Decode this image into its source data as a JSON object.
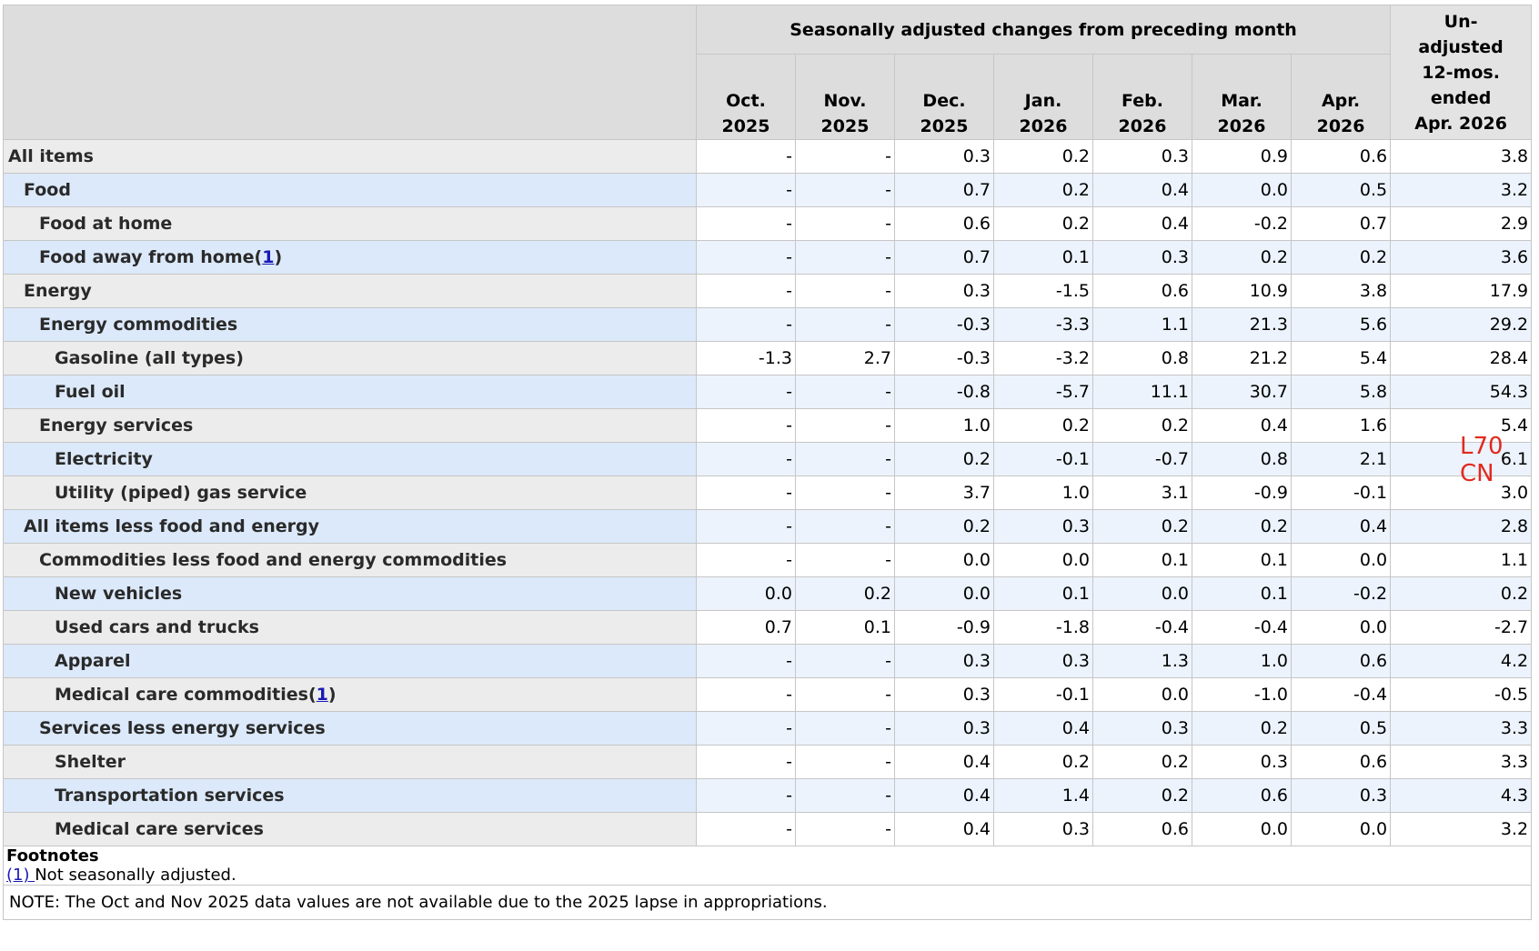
{
  "header": {
    "group_label": "Seasonally adjusted changes from preceding month",
    "periods": [
      {
        "month": "Oct.",
        "year": "2025"
      },
      {
        "month": "Nov.",
        "year": "2025"
      },
      {
        "month": "Dec.",
        "year": "2025"
      },
      {
        "month": "Jan.",
        "year": "2026"
      },
      {
        "month": "Feb.",
        "year": "2026"
      },
      {
        "month": "Mar.",
        "year": "2026"
      },
      {
        "month": "Apr.",
        "year": "2026"
      }
    ],
    "unadjusted": [
      "Un-",
      "adjusted",
      "12-mos.",
      "ended",
      "Apr. 2026"
    ]
  },
  "rows": [
    {
      "label": "All items",
      "indent": 0,
      "values": [
        "-",
        "-",
        "0.3",
        "0.2",
        "0.3",
        "0.9",
        "0.6",
        "3.8"
      ]
    },
    {
      "label": "Food",
      "indent": 1,
      "values": [
        "-",
        "-",
        "0.7",
        "0.2",
        "0.4",
        "0.0",
        "0.5",
        "3.2"
      ]
    },
    {
      "label": "Food at home",
      "indent": 2,
      "values": [
        "-",
        "-",
        "0.6",
        "0.2",
        "0.4",
        "-0.2",
        "0.7",
        "2.9"
      ]
    },
    {
      "label": "Food away from home",
      "footnote": "1",
      "indent": 2,
      "values": [
        "-",
        "-",
        "0.7",
        "0.1",
        "0.3",
        "0.2",
        "0.2",
        "3.6"
      ]
    },
    {
      "label": "Energy",
      "indent": 1,
      "values": [
        "-",
        "-",
        "0.3",
        "-1.5",
        "0.6",
        "10.9",
        "3.8",
        "17.9"
      ]
    },
    {
      "label": "Energy commodities",
      "indent": 2,
      "values": [
        "-",
        "-",
        "-0.3",
        "-3.3",
        "1.1",
        "21.3",
        "5.6",
        "29.2"
      ]
    },
    {
      "label": "Gasoline (all types)",
      "indent": 3,
      "values": [
        "-1.3",
        "2.7",
        "-0.3",
        "-3.2",
        "0.8",
        "21.2",
        "5.4",
        "28.4"
      ]
    },
    {
      "label": "Fuel oil",
      "indent": 3,
      "values": [
        "-",
        "-",
        "-0.8",
        "-5.7",
        "11.1",
        "30.7",
        "5.8",
        "54.3"
      ]
    },
    {
      "label": "Energy services",
      "indent": 2,
      "values": [
        "-",
        "-",
        "1.0",
        "0.2",
        "0.2",
        "0.4",
        "1.6",
        "5.4"
      ]
    },
    {
      "label": "Electricity",
      "indent": 3,
      "values": [
        "-",
        "-",
        "0.2",
        "-0.1",
        "-0.7",
        "0.8",
        "2.1",
        "6.1"
      ]
    },
    {
      "label": "Utility (piped) gas service",
      "indent": 3,
      "values": [
        "-",
        "-",
        "3.7",
        "1.0",
        "3.1",
        "-0.9",
        "-0.1",
        "3.0"
      ]
    },
    {
      "label": "All items less food and energy",
      "indent": 1,
      "values": [
        "-",
        "-",
        "0.2",
        "0.3",
        "0.2",
        "0.2",
        "0.4",
        "2.8"
      ]
    },
    {
      "label": "Commodities less food and energy commodities",
      "indent": 2,
      "values": [
        "-",
        "-",
        "0.0",
        "0.0",
        "0.1",
        "0.1",
        "0.0",
        "1.1"
      ]
    },
    {
      "label": "New vehicles",
      "indent": 3,
      "values": [
        "0.0",
        "0.2",
        "0.0",
        "0.1",
        "0.0",
        "0.1",
        "-0.2",
        "0.2"
      ]
    },
    {
      "label": "Used cars and trucks",
      "indent": 3,
      "values": [
        "0.7",
        "0.1",
        "-0.9",
        "-1.8",
        "-0.4",
        "-0.4",
        "0.0",
        "-2.7"
      ]
    },
    {
      "label": "Apparel",
      "indent": 3,
      "values": [
        "-",
        "-",
        "0.3",
        "0.3",
        "1.3",
        "1.0",
        "0.6",
        "4.2"
      ]
    },
    {
      "label": "Medical care commodities",
      "footnote": "1",
      "indent": 3,
      "values": [
        "-",
        "-",
        "0.3",
        "-0.1",
        "0.0",
        "-1.0",
        "-0.4",
        "-0.5"
      ]
    },
    {
      "label": "Services less energy services",
      "indent": 2,
      "values": [
        "-",
        "-",
        "0.3",
        "0.4",
        "0.3",
        "0.2",
        "0.5",
        "3.3"
      ]
    },
    {
      "label": "Shelter",
      "indent": 3,
      "values": [
        "-",
        "-",
        "0.4",
        "0.2",
        "0.2",
        "0.3",
        "0.6",
        "3.3"
      ]
    },
    {
      "label": "Transportation services",
      "indent": 3,
      "values": [
        "-",
        "-",
        "0.4",
        "1.4",
        "0.2",
        "0.6",
        "0.3",
        "4.3"
      ]
    },
    {
      "label": "Medical care services",
      "indent": 3,
      "values": [
        "-",
        "-",
        "0.4",
        "0.3",
        "0.6",
        "0.0",
        "0.0",
        "3.2"
      ]
    }
  ],
  "footnotes": {
    "title": "Footnotes",
    "items": [
      {
        "mark": "(1) ",
        "text": "Not seasonally adjusted."
      }
    ]
  },
  "note": "NOTE: The Oct and Nov 2025 data values are not available due to the 2025 lapse in appropriations.",
  "stamp": "L70 CN",
  "colors": {
    "header_bg": "#dddddd",
    "odd_label_bg": "#ececec",
    "even_label_bg": "#dce9fa",
    "even_value_bg": "#ecf3fd",
    "link": "#1a1ab5",
    "stamp": "#e12a1e"
  }
}
